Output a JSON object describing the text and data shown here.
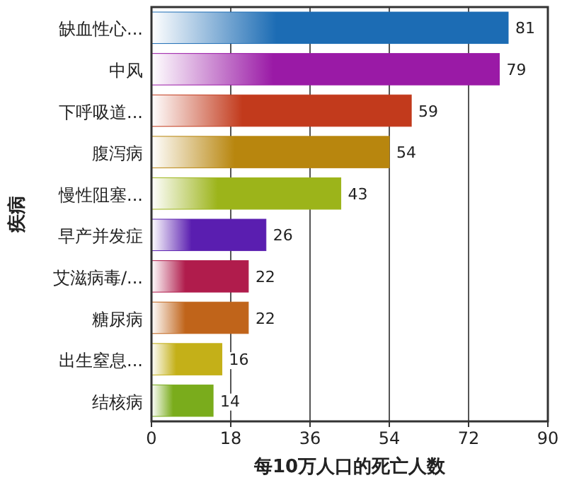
{
  "chart_data": {
    "type": "bar",
    "orientation": "horizontal",
    "xlabel": "每10万人口的死亡人数",
    "ylabel": "疾病",
    "categories": [
      "缺血性心...",
      "中风",
      "下呼吸道...",
      "腹泻病",
      "慢性阻塞...",
      "早产并发症",
      "艾滋病毒/...",
      "糖尿病",
      "出生窒息...",
      "结核病"
    ],
    "values": [
      81,
      79,
      59,
      54,
      43,
      26,
      22,
      22,
      16,
      14
    ],
    "colors": [
      "#1c6cb4",
      "#9a1aa6",
      "#c23a1c",
      "#b8860e",
      "#9cb41a",
      "#5a1eb0",
      "#b01c4c",
      "#c0641a",
      "#c4b018",
      "#7aac1c"
    ],
    "xlim": [
      0,
      90
    ],
    "xticks": [
      0,
      18,
      36,
      54,
      72,
      90
    ],
    "grid": "x",
    "data_labels": true
  }
}
